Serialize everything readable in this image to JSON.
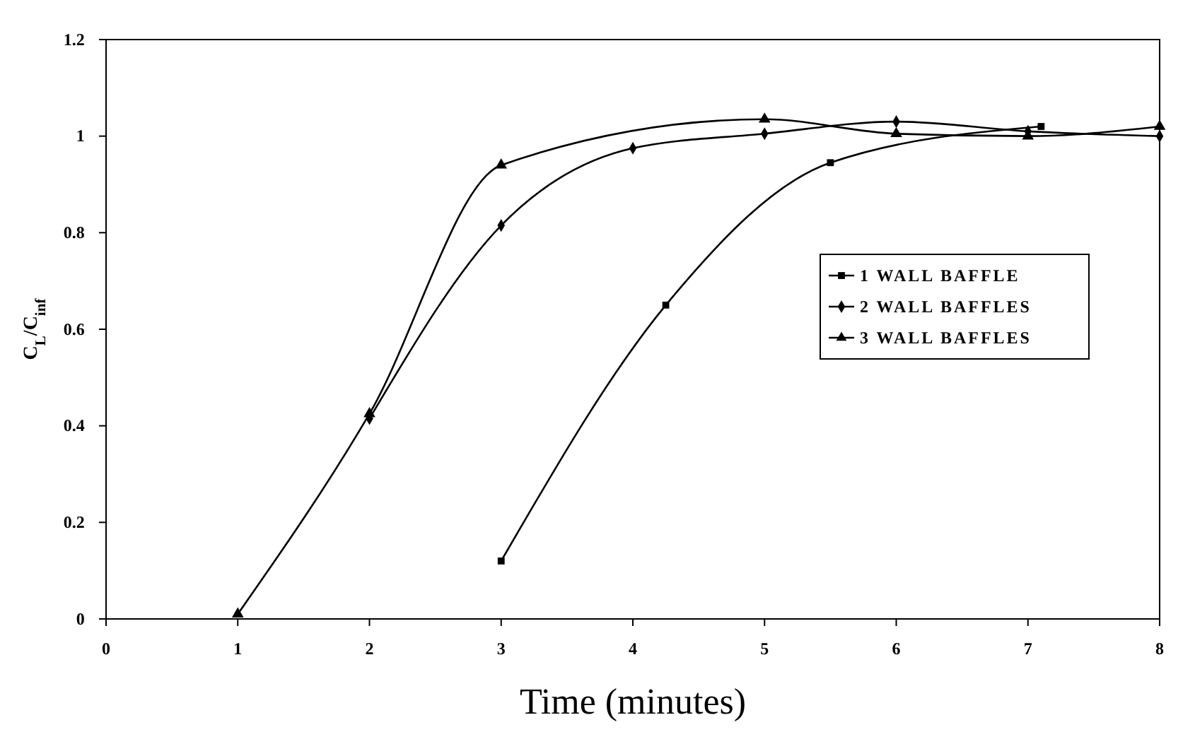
{
  "chart_data": {
    "type": "line",
    "xlabel": "Time (minutes)",
    "ylabel": "C$_{L}$/C$_{inf}$",
    "xlim": [
      0,
      8
    ],
    "xticks": [
      0,
      1,
      2,
      3,
      4,
      5,
      6,
      7,
      8
    ],
    "ylim": [
      0,
      1.2
    ],
    "yticks": [
      0,
      0.2,
      0.4,
      0.6,
      0.8,
      1,
      1.2
    ],
    "grid": false,
    "legend": "right",
    "line_style": "solid",
    "series": [
      {
        "name": "1 WALL BAFFLE",
        "color": "#000000",
        "marker": "square",
        "x": [
          3,
          4.25,
          5.5,
          7.1
        ],
        "values": [
          0.12,
          0.65,
          0.945,
          1.02
        ]
      },
      {
        "name": "2 WALL BAFFLES",
        "color": "#000000",
        "marker": "diamond",
        "x": [
          2,
          3,
          4,
          5,
          6,
          7,
          8
        ],
        "values": [
          0.415,
          0.815,
          0.975,
          1.005,
          1.03,
          1.01,
          1.0
        ]
      },
      {
        "name": "3 WALL BAFFLES",
        "color": "#000000",
        "marker": "triangle",
        "x": [
          1,
          2,
          3,
          5,
          6,
          7,
          8
        ],
        "values": [
          0.01,
          0.425,
          0.94,
          1.035,
          1.005,
          1.0,
          1.02
        ]
      }
    ]
  }
}
